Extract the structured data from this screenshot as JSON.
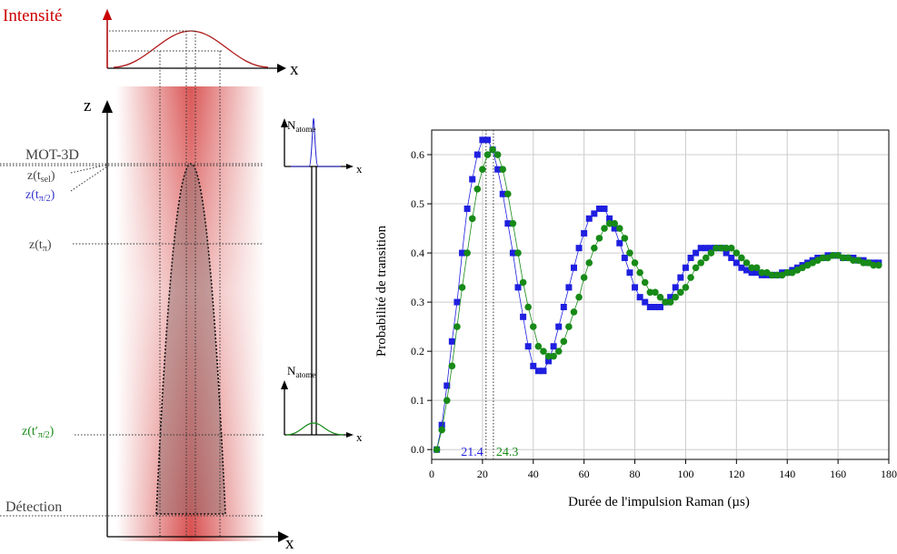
{
  "diagram": {
    "intensity_label": "Intensité",
    "x_top": "x",
    "z_axis": "z",
    "x_bottom": "x",
    "n_top": {
      "base": "N",
      "sub": "atome"
    },
    "n_bottom": {
      "base": "N",
      "sub": "atome"
    },
    "x_small_top": "x",
    "x_small_bottom": "x",
    "mot": "MOT-3D",
    "z_sel": {
      "pre": "z(t",
      "sub": "sel",
      "post": ")"
    },
    "z_half": {
      "pre": "z(t",
      "sub": "π/2",
      "post": ")"
    },
    "z_pi": {
      "pre": "z(t",
      "sub": "π",
      "post": ")"
    },
    "z_half_prime": {
      "pre": "z(t′",
      "sub": "π/2",
      "post": ")"
    },
    "detection": "Détection"
  },
  "chart_data": {
    "type": "scatter",
    "xlabel": "Durée de l'impulsion Raman (µs)",
    "ylabel": "Probabilité de transition",
    "xlim": [
      0,
      180
    ],
    "xticks": [
      0,
      20,
      40,
      60,
      80,
      100,
      120,
      140,
      160,
      180
    ],
    "ylim": [
      -0.02,
      0.65
    ],
    "yticks": [
      {
        "value": 0,
        "label": "0.0"
      },
      0.1,
      0.2,
      0.3,
      0.4,
      0.5,
      0.6
    ],
    "grid": true,
    "x": [
      2,
      4,
      6,
      8,
      10,
      12,
      14,
      16,
      18,
      20,
      22,
      24,
      26,
      28,
      30,
      32,
      34,
      36,
      38,
      40,
      42,
      44,
      46,
      48,
      50,
      52,
      54,
      56,
      58,
      60,
      62,
      64,
      66,
      68,
      70,
      72,
      74,
      76,
      78,
      80,
      82,
      84,
      86,
      88,
      90,
      92,
      94,
      96,
      98,
      100,
      102,
      104,
      106,
      108,
      110,
      112,
      114,
      116,
      118,
      120,
      122,
      124,
      126,
      128,
      130,
      132,
      134,
      136,
      138,
      140,
      142,
      144,
      146,
      148,
      150,
      152,
      154,
      156,
      158,
      160,
      162,
      164,
      166,
      168,
      170,
      172,
      174,
      176
    ],
    "series": [
      {
        "color": "#1f1fe0",
        "marker": "square",
        "values": [
          0.0,
          0.05,
          0.13,
          0.22,
          0.3,
          0.4,
          0.49,
          0.55,
          0.6,
          0.63,
          0.63,
          0.61,
          0.57,
          0.52,
          0.46,
          0.4,
          0.33,
          0.27,
          0.21,
          0.17,
          0.16,
          0.16,
          0.18,
          0.21,
          0.25,
          0.29,
          0.33,
          0.37,
          0.41,
          0.44,
          0.47,
          0.48,
          0.49,
          0.49,
          0.47,
          0.45,
          0.42,
          0.39,
          0.36,
          0.33,
          0.31,
          0.3,
          0.29,
          0.29,
          0.29,
          0.3,
          0.31,
          0.33,
          0.35,
          0.37,
          0.39,
          0.4,
          0.41,
          0.41,
          0.41,
          0.41,
          0.41,
          0.4,
          0.39,
          0.38,
          0.37,
          0.365,
          0.36,
          0.36,
          0.355,
          0.355,
          0.355,
          0.355,
          0.36,
          0.36,
          0.365,
          0.37,
          0.375,
          0.38,
          0.385,
          0.39,
          0.39,
          0.395,
          0.395,
          0.395,
          0.39,
          0.39,
          0.39,
          0.385,
          0.385,
          0.38,
          0.38,
          0.38
        ]
      },
      {
        "color": "#178a17",
        "marker": "circle",
        "values": [
          0.0,
          0.04,
          0.1,
          0.17,
          0.25,
          0.33,
          0.4,
          0.47,
          0.53,
          0.57,
          0.6,
          0.61,
          0.6,
          0.57,
          0.52,
          0.46,
          0.4,
          0.34,
          0.29,
          0.25,
          0.21,
          0.2,
          0.19,
          0.19,
          0.2,
          0.22,
          0.25,
          0.28,
          0.31,
          0.35,
          0.38,
          0.41,
          0.43,
          0.45,
          0.46,
          0.46,
          0.45,
          0.43,
          0.4,
          0.38,
          0.36,
          0.34,
          0.32,
          0.32,
          0.31,
          0.3,
          0.3,
          0.31,
          0.32,
          0.33,
          0.35,
          0.37,
          0.38,
          0.39,
          0.4,
          0.41,
          0.41,
          0.41,
          0.41,
          0.4,
          0.39,
          0.38,
          0.37,
          0.37,
          0.36,
          0.36,
          0.355,
          0.355,
          0.355,
          0.36,
          0.36,
          0.365,
          0.37,
          0.375,
          0.38,
          0.385,
          0.39,
          0.39,
          0.395,
          0.395,
          0.39,
          0.39,
          0.385,
          0.385,
          0.38,
          0.38,
          0.375,
          0.375
        ]
      }
    ],
    "markers": [
      {
        "x": 21.4,
        "color": "#1f1fe0"
      },
      {
        "x": 24.3,
        "color": "#178a17"
      }
    ]
  }
}
